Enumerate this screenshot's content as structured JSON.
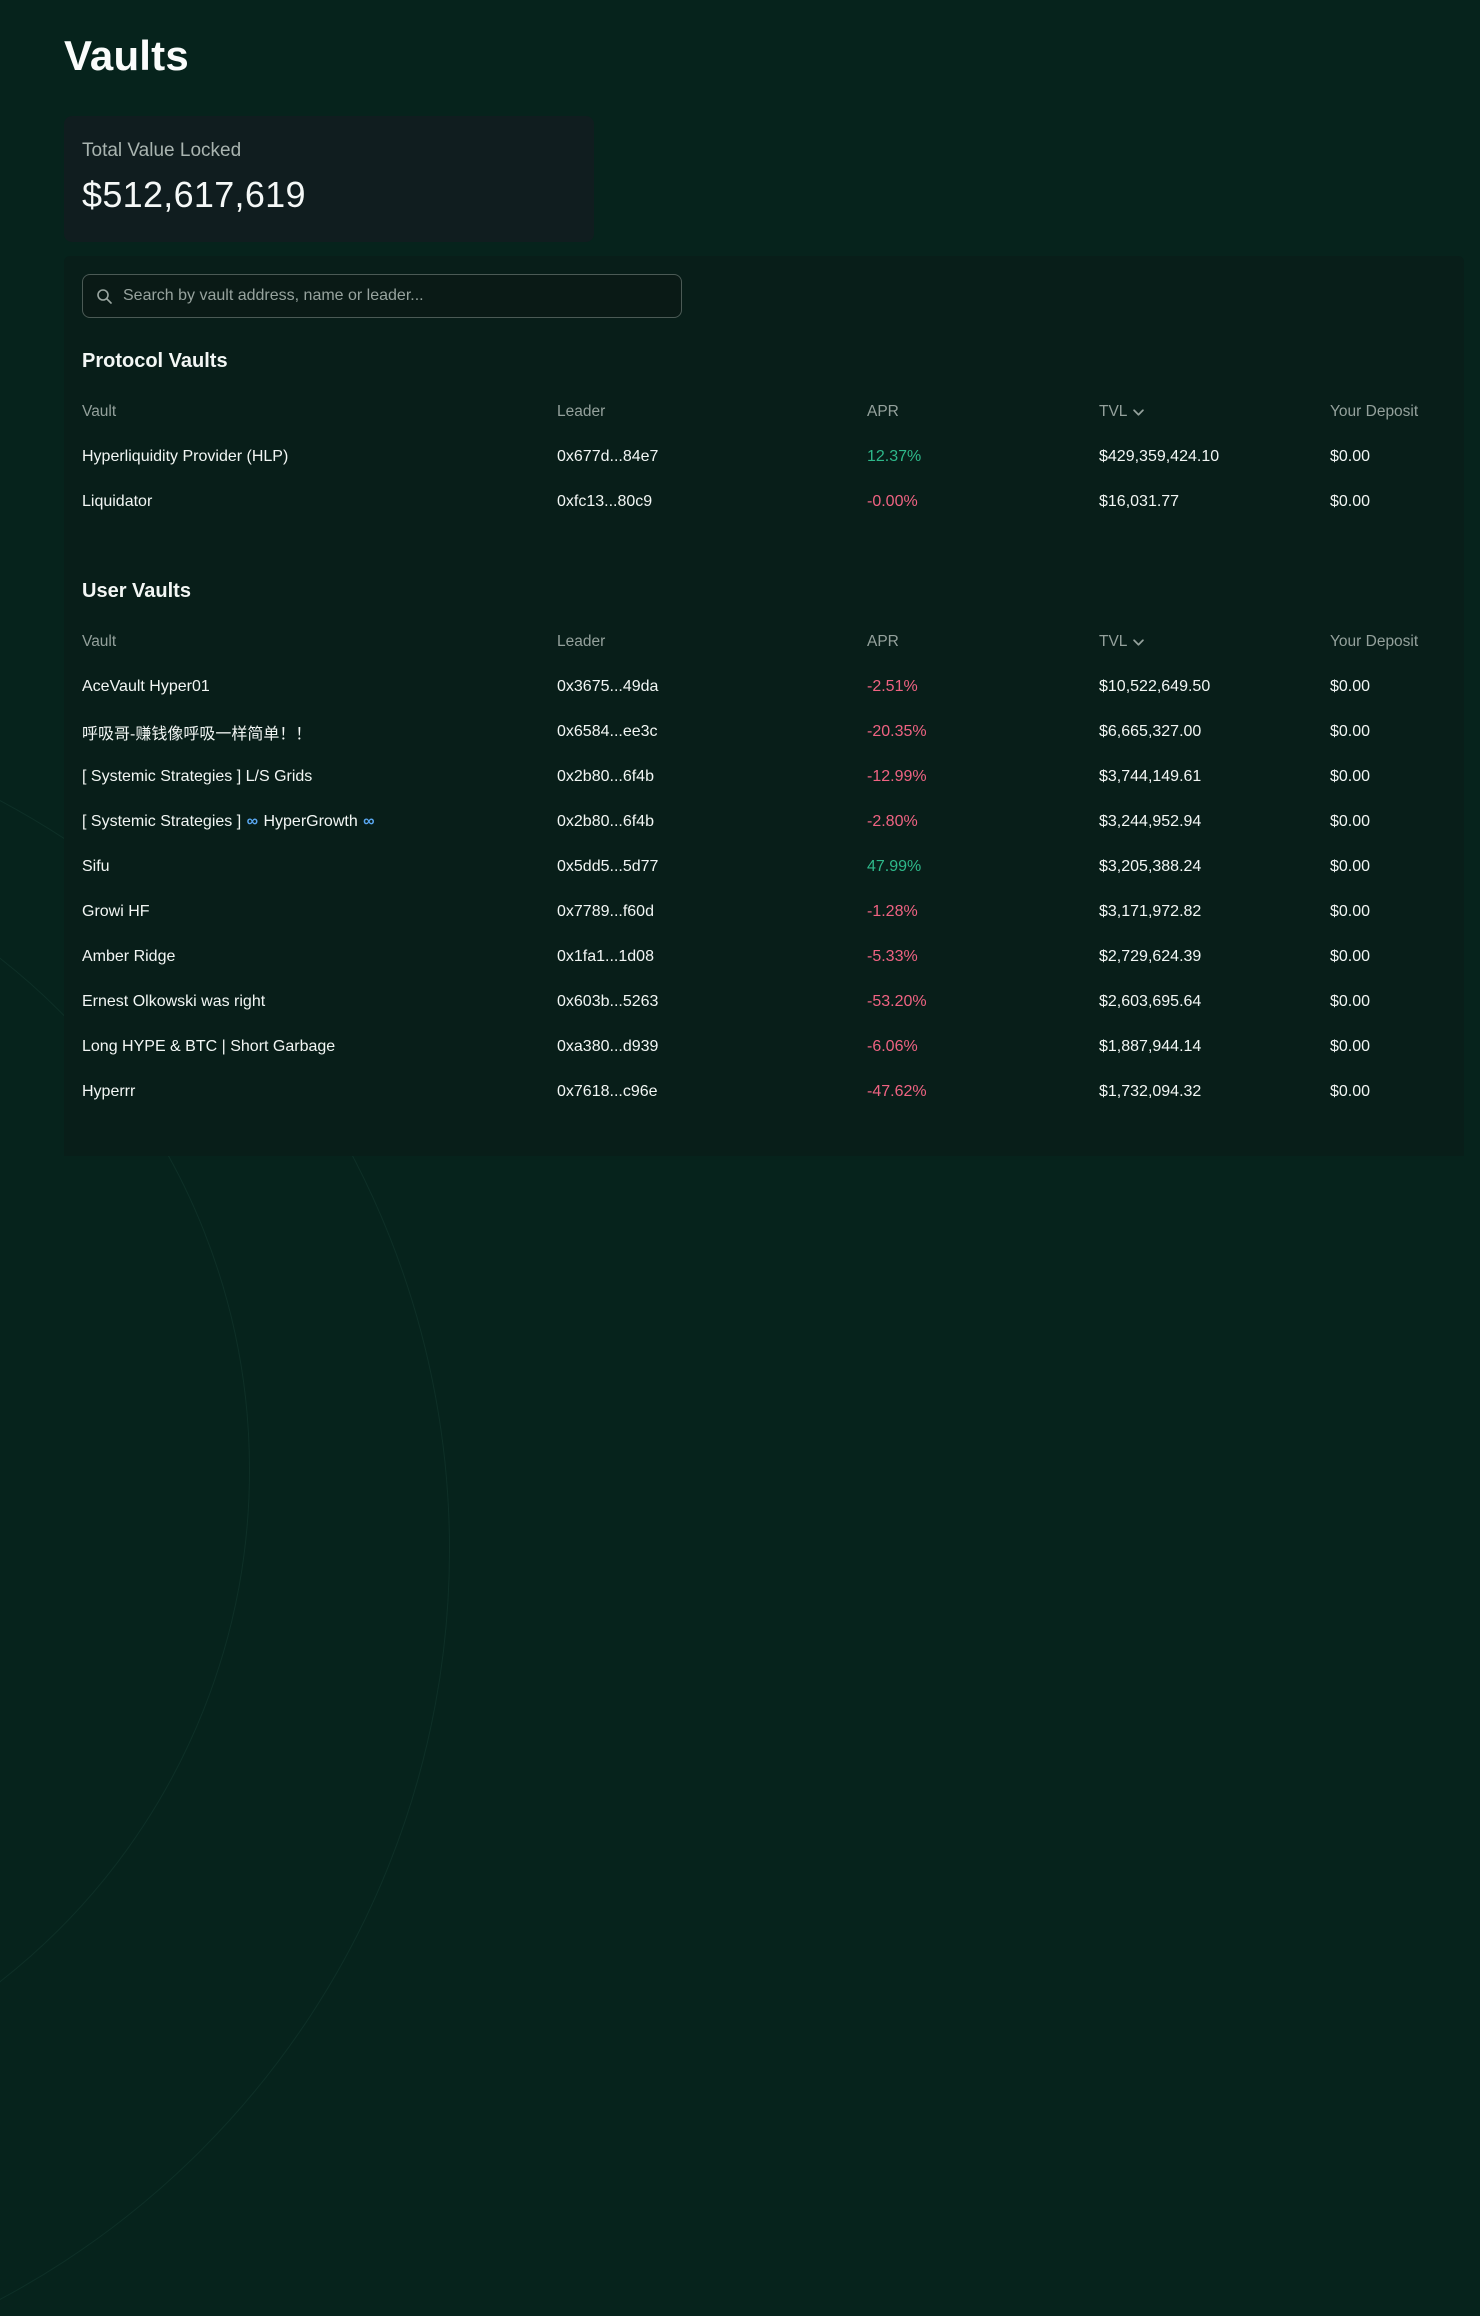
{
  "page": {
    "title": "Vaults"
  },
  "tvl_card": {
    "label": "Total Value Locked",
    "value": "$512,617,619"
  },
  "search": {
    "placeholder": "Search by vault address, name or leader..."
  },
  "columns": {
    "vault": "Vault",
    "leader": "Leader",
    "apr": "APR",
    "tvl": "TVL",
    "deposit": "Your Deposit"
  },
  "colors": {
    "positive": "#2eb88a",
    "negative": "#ef6382",
    "infinity": "#5aa7f0"
  },
  "sections": [
    {
      "title": "Protocol Vaults",
      "rows": [
        {
          "name": "Hyperliquidity Provider (HLP)",
          "leader": "0x677d...84e7",
          "apr": "12.37%",
          "tvl": "$429,359,424.10",
          "deposit": "$0.00"
        },
        {
          "name": "Liquidator",
          "leader": "0xfc13...80c9",
          "apr": "-0.00%",
          "tvl": "$16,031.77",
          "deposit": "$0.00"
        }
      ]
    },
    {
      "title": "User Vaults",
      "rows": [
        {
          "name": "AceVault Hyper01",
          "leader": "0x3675...49da",
          "apr": "-2.51%",
          "tvl": "$10,522,649.50",
          "deposit": "$0.00"
        },
        {
          "name": "呼吸哥-赚钱像呼吸一样简单！！",
          "leader": "0x6584...ee3c",
          "apr": "-20.35%",
          "tvl": "$6,665,327.00",
          "deposit": "$0.00"
        },
        {
          "name": "[ Systemic Strategies ] L/S Grids",
          "leader": "0x2b80...6f4b",
          "apr": "-12.99%",
          "tvl": "$3,744,149.61",
          "deposit": "$0.00"
        },
        {
          "name": "[ Systemic Strategies ] ∞ HyperGrowth ∞",
          "leader": "0x2b80...6f4b",
          "apr": "-2.80%",
          "tvl": "$3,244,952.94",
          "deposit": "$0.00"
        },
        {
          "name": "Sifu",
          "leader": "0x5dd5...5d77",
          "apr": "47.99%",
          "tvl": "$3,205,388.24",
          "deposit": "$0.00"
        },
        {
          "name": "Growi HF",
          "leader": "0x7789...f60d",
          "apr": "-1.28%",
          "tvl": "$3,171,972.82",
          "deposit": "$0.00"
        },
        {
          "name": "Amber Ridge",
          "leader": "0x1fa1...1d08",
          "apr": "-5.33%",
          "tvl": "$2,729,624.39",
          "deposit": "$0.00"
        },
        {
          "name": "Ernest Olkowski was right",
          "leader": "0x603b...5263",
          "apr": "-53.20%",
          "tvl": "$2,603,695.64",
          "deposit": "$0.00"
        },
        {
          "name": "Long HYPE & BTC | Short Garbage",
          "leader": "0xa380...d939",
          "apr": "-6.06%",
          "tvl": "$1,887,944.14",
          "deposit": "$0.00"
        },
        {
          "name": "Hyperrr",
          "leader": "0x7618...c96e",
          "apr": "-47.62%",
          "tvl": "$1,732,094.32",
          "deposit": "$0.00"
        }
      ]
    }
  ]
}
